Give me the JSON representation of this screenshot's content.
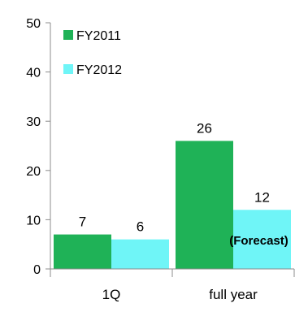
{
  "chart_data": {
    "type": "bar",
    "categories": [
      "1Q",
      "full year"
    ],
    "series": [
      {
        "name": "FY2011",
        "values": [
          7,
          26
        ],
        "color": "#1fb257"
      },
      {
        "name": "FY2012",
        "values": [
          6,
          12
        ],
        "color": "#6ff5f7"
      }
    ],
    "yticks": [
      "0",
      "10",
      "20",
      "30",
      "40",
      "50"
    ],
    "ylim": [
      0,
      50
    ],
    "data_labels": [
      [
        "7",
        "26"
      ],
      [
        "6",
        "12"
      ]
    ],
    "annotation": "(Forecast)",
    "legend_position": "top-left",
    "grid": false,
    "axis_color": "#8c8c8c"
  }
}
